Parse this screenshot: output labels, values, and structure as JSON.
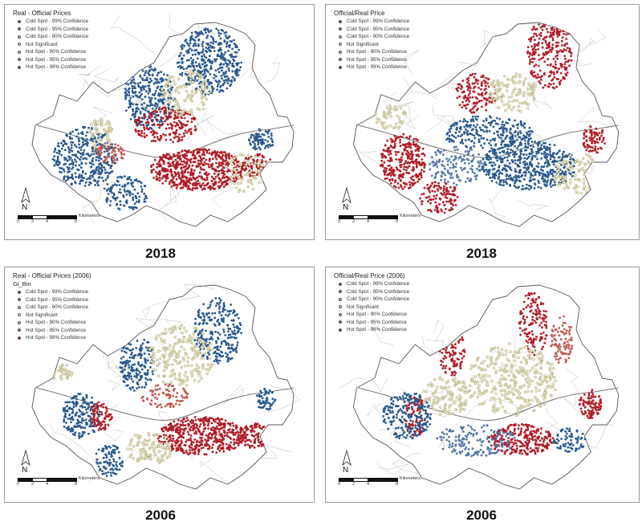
{
  "colors": {
    "cold99": "#2b5a8e",
    "cold95": "#5677a6",
    "cold90": "#aab9cc",
    "notsig": "#f1ecc3",
    "hot90": "#e0b8a8",
    "hot95": "#c05a50",
    "hot99": "#b01f27",
    "boundary": "#888888"
  },
  "legend_items": [
    "Cold Spot - 99% Confidence",
    "Cold Spot - 95% Confidence",
    "Cold Spot - 90% Confidence",
    "Not Significant",
    "Hot Spot - 90% Confidence",
    "Hot Spot - 95% Confidence",
    "Hot Spot - 99% Confidence"
  ],
  "scale": {
    "unit": "Kilometers",
    "ticks": [
      "0",
      "2",
      "4",
      "8"
    ]
  },
  "north": "N",
  "panels": [
    {
      "title": "Real - Official Prices",
      "subtitle": "",
      "year": "2018",
      "pattern": "real2018"
    },
    {
      "title": "Official/Real Price",
      "subtitle": "",
      "year": "2018",
      "pattern": "ratio2018"
    },
    {
      "title": "Real - Official Prices (2006)",
      "subtitle": "Gi_Bin",
      "year": "2006",
      "pattern": "real2006"
    },
    {
      "title": "Official/Real Price (2006)",
      "subtitle": "",
      "year": "2006",
      "pattern": "ratio2006"
    }
  ]
}
